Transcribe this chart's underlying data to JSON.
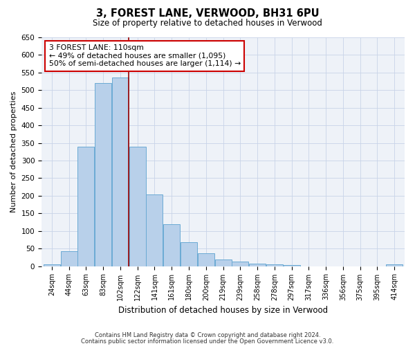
{
  "title": "3, FOREST LANE, VERWOOD, BH31 6PU",
  "subtitle": "Size of property relative to detached houses in Verwood",
  "xlabel": "Distribution of detached houses by size in Verwood",
  "ylabel": "Number of detached properties",
  "categories": [
    "24sqm",
    "44sqm",
    "63sqm",
    "83sqm",
    "102sqm",
    "122sqm",
    "141sqm",
    "161sqm",
    "180sqm",
    "200sqm",
    "219sqm",
    "239sqm",
    "258sqm",
    "278sqm",
    "297sqm",
    "317sqm",
    "336sqm",
    "356sqm",
    "375sqm",
    "395sqm",
    "414sqm"
  ],
  "values": [
    5,
    42,
    340,
    520,
    535,
    340,
    204,
    120,
    67,
    37,
    18,
    13,
    8,
    5,
    3,
    0,
    0,
    0,
    0,
    0,
    5
  ],
  "bar_color": "#b8d0ea",
  "bar_edgecolor": "#6aaad4",
  "vline_x": 4.5,
  "vline_color": "#990000",
  "annotation_text": "3 FOREST LANE: 110sqm\n← 49% of detached houses are smaller (1,095)\n50% of semi-detached houses are larger (1,114) →",
  "annotation_box_color": "#cc0000",
  "ylim": [
    0,
    650
  ],
  "yticks": [
    0,
    50,
    100,
    150,
    200,
    250,
    300,
    350,
    400,
    450,
    500,
    550,
    600,
    650
  ],
  "grid_color": "#c8d4e8",
  "background_color": "#eef2f8",
  "footer_line1": "Contains HM Land Registry data © Crown copyright and database right 2024.",
  "footer_line2": "Contains public sector information licensed under the Open Government Licence v3.0."
}
